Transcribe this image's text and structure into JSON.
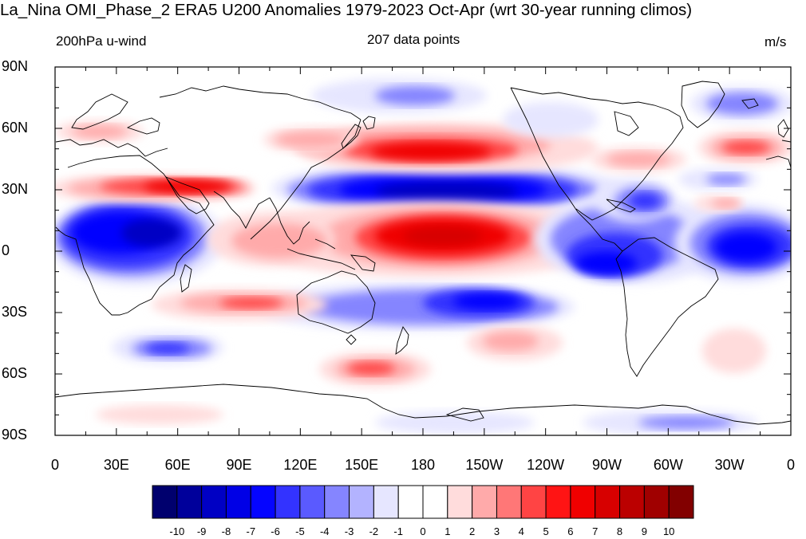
{
  "title": "La_Nina OMI_Phase_2 ERA5 U200 Anomalies 1979-2023 Oct-Apr (wrt 30-year running climos)",
  "left_label": "200hPa u-wind",
  "center_label": "207 data points",
  "units": "m/s",
  "y_axis_labels": [
    "90N",
    "60N",
    "30N",
    "0",
    "30S",
    "60S",
    "90S"
  ],
  "x_axis_labels": [
    "0",
    "30E",
    "60E",
    "90E",
    "120E",
    "150E",
    "180",
    "150W",
    "120W",
    "90W",
    "60W",
    "30W",
    "0"
  ],
  "colorbar": {
    "labels": [
      "-10",
      "-9",
      "-8",
      "-7",
      "-6",
      "-5",
      "-4",
      "-3",
      "-2",
      "-1",
      "0",
      "1",
      "2",
      "3",
      "4",
      "5",
      "6",
      "7",
      "8",
      "9",
      "10"
    ],
    "colors": [
      "#00006e",
      "#00009b",
      "#0000c4",
      "#0000e6",
      "#0505ff",
      "#3333ff",
      "#5a5aff",
      "#8585ff",
      "#b3b3ff",
      "#e6e6ff",
      "#ffffff",
      "#ffffff",
      "#ffdcdc",
      "#ffaaaa",
      "#ff7777",
      "#ff4444",
      "#ff1414",
      "#f00000",
      "#d70000",
      "#bb0000",
      "#a00000",
      "#820000"
    ]
  },
  "palette": {
    "neg5": "#0000c4",
    "neg4": "#0505ff",
    "neg3": "#3333ff",
    "neg2": "#8585ff",
    "neg1": "#e6e6ff",
    "pos1": "#ffdcdc",
    "pos2": "#ffaaaa",
    "pos3": "#ff4444",
    "pos4": "#f00000",
    "pos5": "#d70000"
  }
}
